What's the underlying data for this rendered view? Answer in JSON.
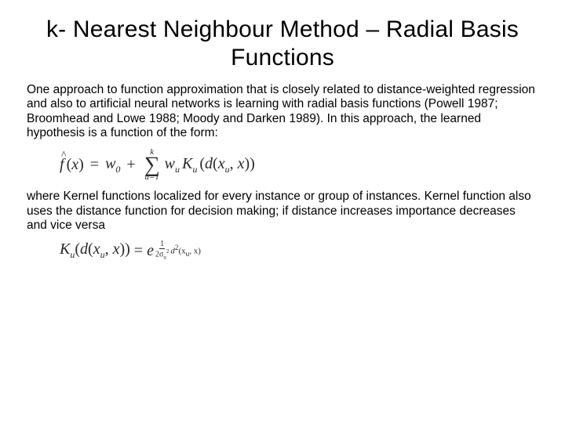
{
  "title": "k- Nearest Neighbour Method – Radial Basis Functions",
  "para1": "One approach to function approximation that is closely related to distance-weighted regression and also to artificial neural networks is learning with radial basis functions (Powell 1987; Broomhead and Lowe 1988; Moody and Darken 1989). In this approach, the learned hypothesis is a function of the form:",
  "para2": "where Kernel functions localized for every instance or group of instances. Kernel function also uses the distance function for decision making; if distance increases importance decreases and vice versa",
  "formula1": {
    "lhs_symbol": "f",
    "lhs_arg": "x",
    "w0": "w",
    "w0_sub": "0",
    "sum_top": "k",
    "sum_bottom": "u=1",
    "wu": "w",
    "wu_sub": "u",
    "K": "K",
    "K_sub": "u",
    "d": "d",
    "xu": "x",
    "xu_sub": "u",
    "x": "x"
  },
  "formula2": {
    "K": "K",
    "K_sub": "u",
    "d": "d",
    "xu": "x",
    "xu_sub": "u",
    "x": "x",
    "e": "e",
    "frac_num": "1",
    "frac_den": "2σ",
    "frac_den_sub": "u",
    "frac_den_sup": "2",
    "d2": "d",
    "d2_sup": "2",
    "d2_args": "(x",
    "d2_arg_sub": "u",
    "d2_rest": ", x)"
  },
  "style": {
    "background": "#ffffff",
    "text_color": "#000000",
    "formula_color": "#2a2a2a",
    "title_fontsize": 30,
    "body_fontsize": 15.5,
    "formula_fontsize": 20,
    "font_family_body": "Arial",
    "font_family_math": "Cambria Math"
  }
}
